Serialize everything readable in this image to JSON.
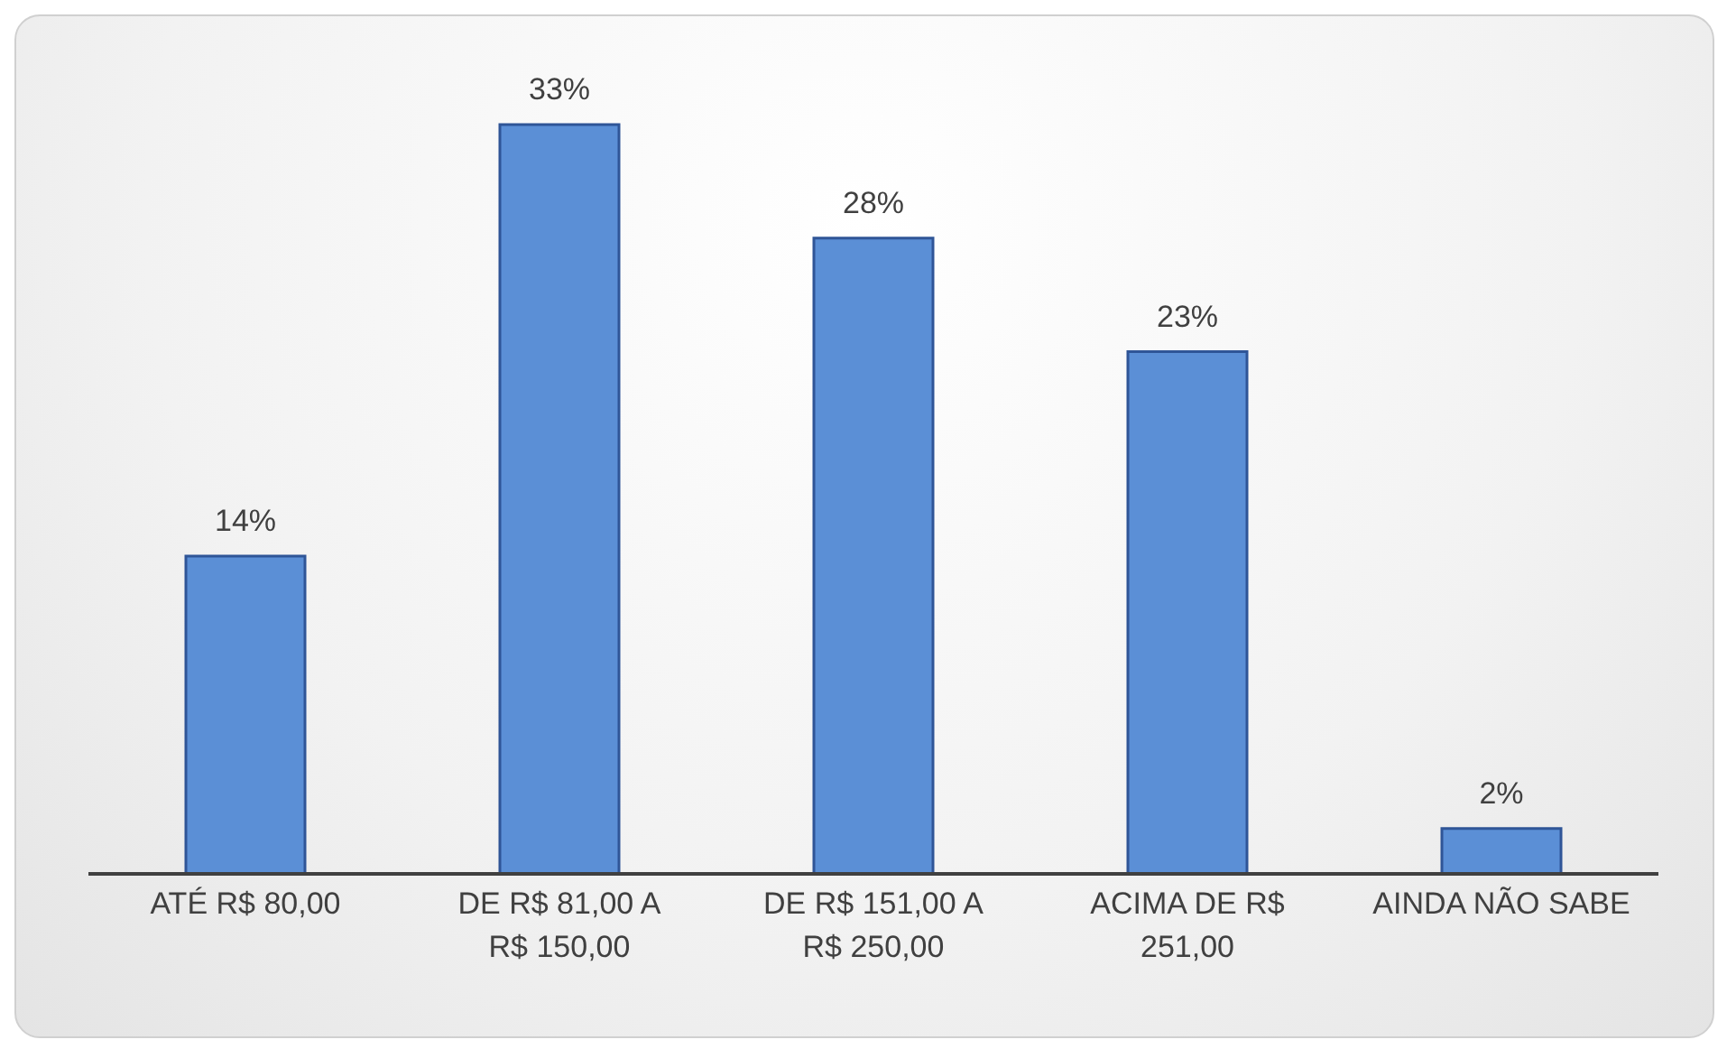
{
  "chart_data": {
    "type": "bar",
    "categories": [
      "ATÉ R$ 80,00",
      "DE R$ 81,00 A R$ 150,00",
      "DE R$ 151,00 A R$ 250,00",
      "ACIMA DE R$ 251,00",
      "AINDA NÃO SABE"
    ],
    "values": [
      14,
      33,
      28,
      23,
      2
    ],
    "value_labels": [
      "14%",
      "33%",
      "28%",
      "23%",
      "2%"
    ],
    "color": "#5b8fd6"
  }
}
